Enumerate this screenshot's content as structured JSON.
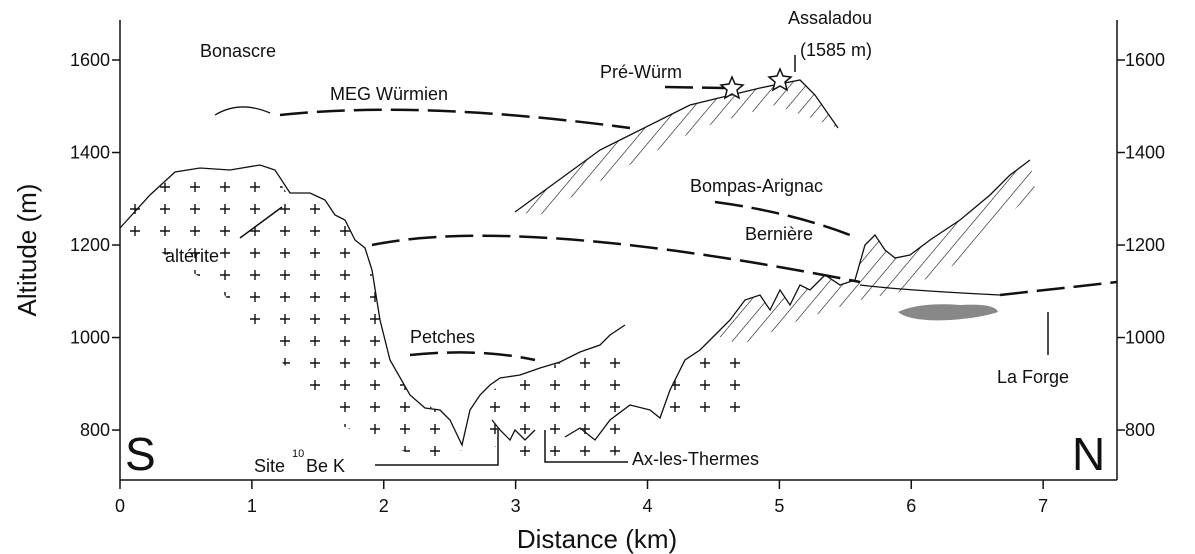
{
  "axes": {
    "xlabel": "Distance (km)",
    "ylabel": "Altitude (m)",
    "xlim": [
      0,
      7.56
    ],
    "ylim": [
      692,
      1680
    ],
    "xticks": [
      0,
      1,
      2,
      3,
      4,
      5,
      6,
      7
    ],
    "yticks": [
      800,
      1000,
      1200,
      1400,
      1600
    ],
    "y2ticks": [
      800,
      1000,
      1200,
      1400,
      1600
    ]
  },
  "labels": {
    "bonascre": "Bonascre",
    "meg": "MEG Würmien",
    "pre_wurm": "Pré-Würm",
    "assaladou": "Assaladou",
    "assaladou_alt": "(1585 m)",
    "bompas": "Bompas-Arignac",
    "berniere": "Bernière",
    "alterite": "altérite",
    "petches": "Petches",
    "la_forge": "La Forge",
    "site": "Site",
    "site_sup": "10",
    "site_rest": "Be K",
    "ax": "Ax-les-Thermes",
    "south": "S",
    "north": "N"
  }
}
